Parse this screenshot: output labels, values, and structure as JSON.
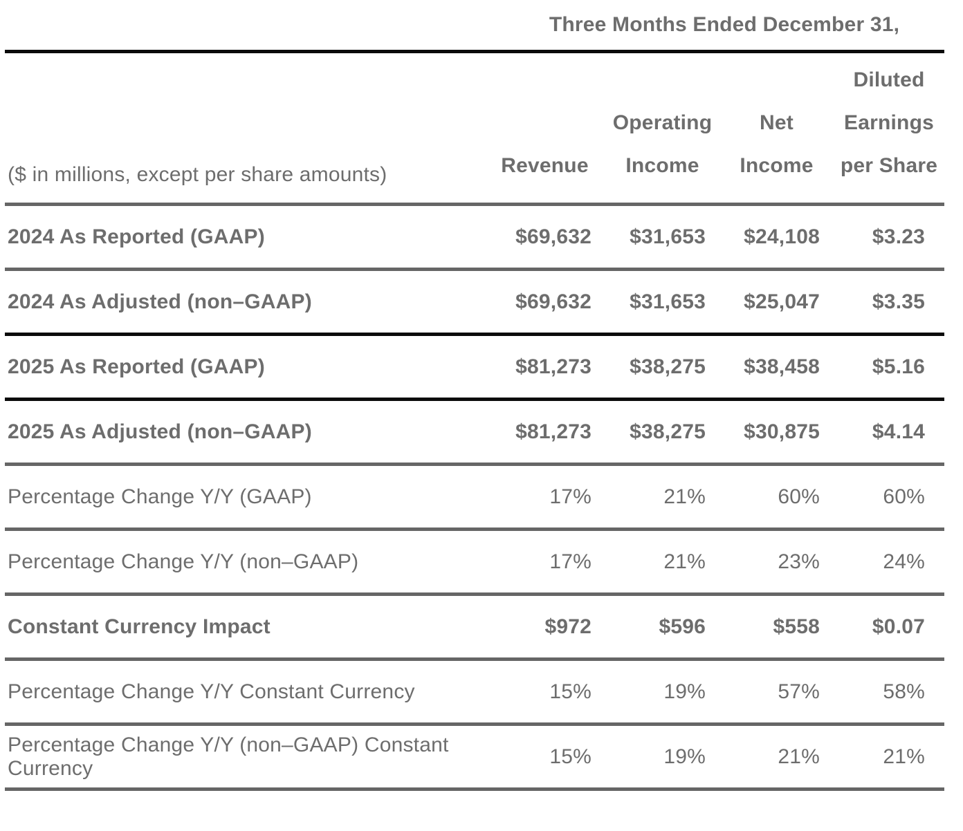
{
  "table": {
    "period_header": "Three Months Ended December 31,",
    "unit_note": "($ in millions, except per share amounts)",
    "columns": [
      {
        "id": "revenue",
        "lines": [
          "Revenue"
        ]
      },
      {
        "id": "operating-income",
        "lines": [
          "Operating",
          "Income"
        ]
      },
      {
        "id": "net-income",
        "lines": [
          "Net Income"
        ]
      },
      {
        "id": "diluted-eps",
        "lines": [
          "Diluted",
          "Earnings",
          "per Share"
        ]
      }
    ],
    "rows": [
      {
        "label": "2024 As Reported (GAAP)",
        "values": [
          "$69,632",
          "$31,653",
          "$24,108",
          "$3.23"
        ]
      },
      {
        "label": "2024 As Adjusted (non–GAAP)",
        "values": [
          "$69,632",
          "$31,653",
          "$25,047",
          "$3.35"
        ]
      },
      {
        "label": "2025 As Reported (GAAP)",
        "values": [
          "$81,273",
          "$38,275",
          "$38,458",
          "$5.16"
        ]
      },
      {
        "label": "2025 As Adjusted (non–GAAP)",
        "values": [
          "$81,273",
          "$38,275",
          "$30,875",
          "$4.14"
        ]
      },
      {
        "label": "Percentage Change Y/Y (GAAP)",
        "values": [
          "17%",
          "21%",
          "60%",
          "60%"
        ]
      },
      {
        "label": "Percentage Change Y/Y (non–GAAP)",
        "values": [
          "17%",
          "21%",
          "23%",
          "24%"
        ]
      },
      {
        "label": "Constant Currency Impact",
        "values": [
          "$972",
          "$596",
          "$558",
          "$0.07"
        ]
      },
      {
        "label": "Percentage Change Y/Y Constant Currency",
        "values": [
          "15%",
          "19%",
          "57%",
          "58%"
        ]
      },
      {
        "label": "Percentage Change Y/Y (non–GAAP) Constant Currency",
        "values": [
          "15%",
          "19%",
          "21%",
          "21%"
        ]
      }
    ]
  },
  "colors": {
    "text": "#6d6d6d",
    "line_gray": "#666666",
    "line_black": "#0b0b0b",
    "background": "#ffffff"
  }
}
